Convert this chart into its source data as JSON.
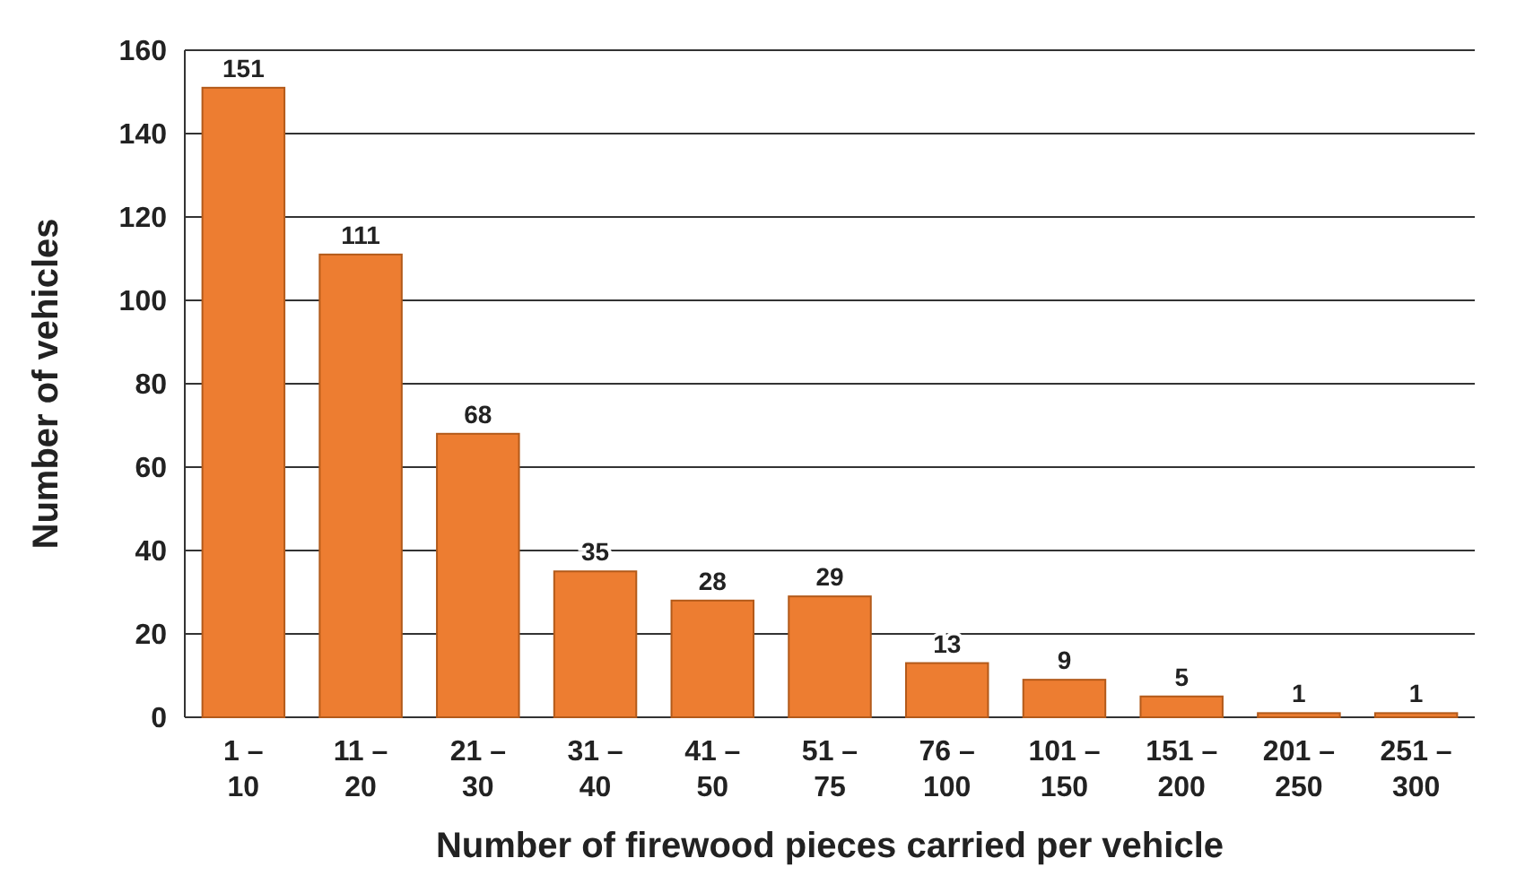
{
  "chart_data": {
    "type": "bar",
    "xlabel": "Number of firewood pieces carried per vehicle",
    "ylabel": "Number of vehicles",
    "categories": [
      "1 – 10",
      "11 – 20",
      "21 – 30",
      "31 – 40",
      "41 – 50",
      "51 – 75",
      "76 – 100",
      "101 – 150",
      "151 – 200",
      "201 – 250",
      "251 – 300"
    ],
    "values": [
      151,
      111,
      68,
      35,
      28,
      29,
      13,
      9,
      5,
      1,
      1
    ],
    "color": "#ed7d31",
    "ylim": [
      0,
      160
    ],
    "yticks": [
      0,
      20,
      40,
      60,
      80,
      100,
      120,
      140,
      160
    ],
    "grid": "y",
    "data_labels": true
  }
}
